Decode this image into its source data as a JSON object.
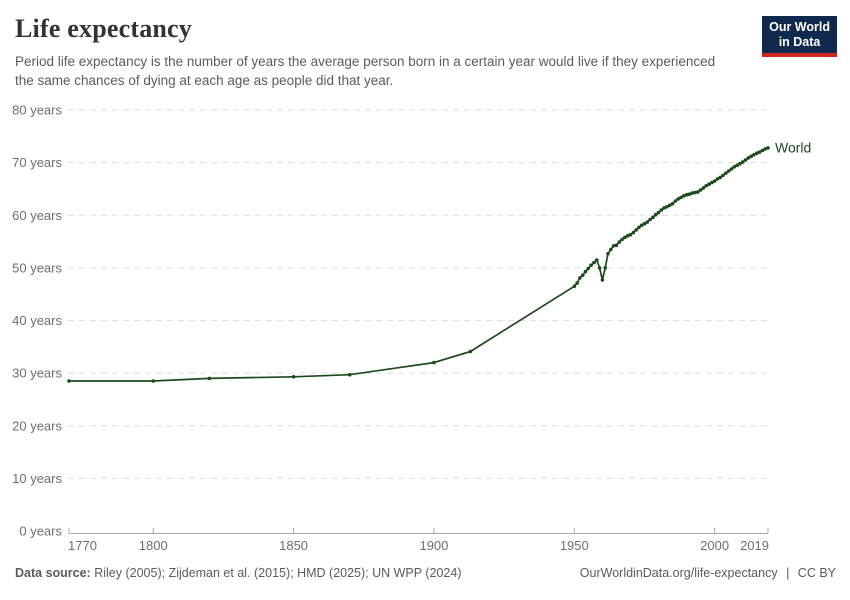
{
  "header": {
    "title": "Life expectancy",
    "subtitle": "Period life expectancy is the number of years the average person born in a certain year would live if they experienced the same chances of dying at each age as people did that year.",
    "logo": {
      "line1": "Our World",
      "line2": "in Data",
      "bg_color": "#12294e",
      "accent_color": "#ce261f"
    }
  },
  "footer": {
    "source_label": "Data source:",
    "source_text": "Riley (2005); Zijdeman et al. (2015); HMD (2025); UN WPP (2024)",
    "url_text": "OurWorldinData.org/life-expectancy",
    "separator": "|",
    "license_text": "CC BY"
  },
  "chart_data": {
    "type": "line",
    "title": "Life expectancy",
    "entity_label": "World",
    "unit": "years",
    "xlim": [
      1770,
      2019
    ],
    "ylim": [
      0,
      80
    ],
    "x_ticks": [
      1770,
      1800,
      1850,
      1900,
      1950,
      2000,
      2019
    ],
    "y_ticks": [
      0,
      10,
      20,
      30,
      40,
      50,
      60,
      70,
      80
    ],
    "y_tick_suffix": " years",
    "grid": "horizontal-dashed",
    "legend_position": "end-of-line",
    "line_color": "#1d4a1c",
    "series": [
      {
        "name": "World",
        "points": [
          [
            1770,
            28.5
          ],
          [
            1800,
            28.5
          ],
          [
            1820,
            29.0
          ],
          [
            1850,
            29.3
          ],
          [
            1870,
            29.7
          ],
          [
            1900,
            32.0
          ],
          [
            1913,
            34.1
          ],
          [
            1950,
            46.5
          ],
          [
            1951,
            47.1
          ],
          [
            1952,
            48.1
          ],
          [
            1953,
            48.6
          ],
          [
            1954,
            49.3
          ],
          [
            1955,
            49.9
          ],
          [
            1956,
            50.5
          ],
          [
            1957,
            51.0
          ],
          [
            1958,
            51.5
          ],
          [
            1959,
            50.0
          ],
          [
            1960,
            47.7
          ],
          [
            1961,
            50.0
          ],
          [
            1962,
            52.7
          ],
          [
            1963,
            53.5
          ],
          [
            1964,
            54.2
          ],
          [
            1965,
            54.3
          ],
          [
            1966,
            54.9
          ],
          [
            1967,
            55.4
          ],
          [
            1968,
            55.8
          ],
          [
            1969,
            56.1
          ],
          [
            1970,
            56.3
          ],
          [
            1971,
            56.7
          ],
          [
            1972,
            57.2
          ],
          [
            1973,
            57.7
          ],
          [
            1974,
            58.1
          ],
          [
            1975,
            58.4
          ],
          [
            1976,
            58.7
          ],
          [
            1977,
            59.2
          ],
          [
            1978,
            59.6
          ],
          [
            1979,
            60.1
          ],
          [
            1980,
            60.5
          ],
          [
            1981,
            61.0
          ],
          [
            1982,
            61.4
          ],
          [
            1983,
            61.6
          ],
          [
            1984,
            61.9
          ],
          [
            1985,
            62.2
          ],
          [
            1986,
            62.7
          ],
          [
            1987,
            63.1
          ],
          [
            1988,
            63.4
          ],
          [
            1989,
            63.7
          ],
          [
            1990,
            63.9
          ],
          [
            1991,
            64.0
          ],
          [
            1992,
            64.2
          ],
          [
            1993,
            64.3
          ],
          [
            1994,
            64.4
          ],
          [
            1995,
            64.8
          ],
          [
            1996,
            65.2
          ],
          [
            1997,
            65.6
          ],
          [
            1998,
            65.9
          ],
          [
            1999,
            66.2
          ],
          [
            2000,
            66.5
          ],
          [
            2001,
            66.9
          ],
          [
            2002,
            67.2
          ],
          [
            2003,
            67.6
          ],
          [
            2004,
            68.0
          ],
          [
            2005,
            68.4
          ],
          [
            2006,
            68.8
          ],
          [
            2007,
            69.2
          ],
          [
            2008,
            69.5
          ],
          [
            2009,
            69.8
          ],
          [
            2010,
            70.1
          ],
          [
            2011,
            70.5
          ],
          [
            2012,
            70.9
          ],
          [
            2013,
            71.2
          ],
          [
            2014,
            71.5
          ],
          [
            2015,
            71.8
          ],
          [
            2016,
            72.0
          ],
          [
            2017,
            72.3
          ],
          [
            2018,
            72.6
          ],
          [
            2019,
            72.8
          ]
        ]
      }
    ]
  }
}
